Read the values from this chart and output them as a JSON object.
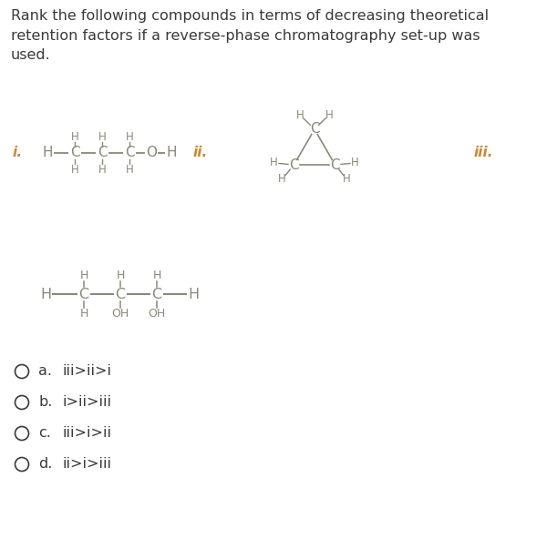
{
  "title_text": "Rank the following compounds in terms of decreasing theoretical\nretention factors if a reverse-phase chromatography set-up was\nused.",
  "bg_color": "#ffffff",
  "text_color": "#3a3a3a",
  "struct_color": "#8a8878",
  "roman_color": "#cc8833",
  "answer_options": [
    {
      "letter": "a.",
      "text": "iii>ii>i"
    },
    {
      "letter": "b.",
      "text": "i>ii>iii"
    },
    {
      "letter": "c.",
      "text": "iii>i>ii"
    },
    {
      "letter": "d.",
      "text": "ii>i>iii"
    }
  ],
  "figsize": [
    6.11,
    5.92
  ],
  "dpi": 100
}
